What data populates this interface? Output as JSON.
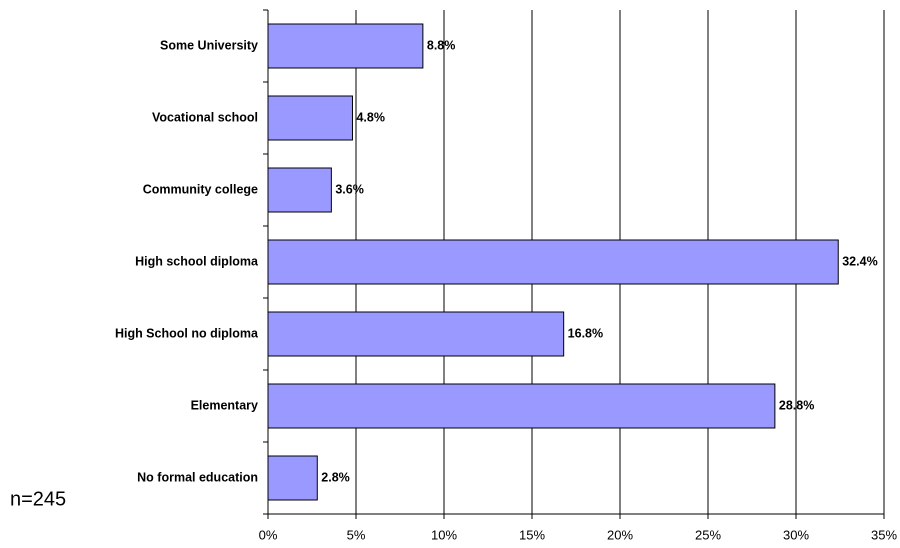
{
  "chart_data": {
    "type": "barh",
    "categories": [
      "Some University",
      "Vocational school",
      "Community college",
      "High school diploma",
      "High School no diploma",
      "Elementary",
      "No formal education"
    ],
    "values": [
      8.8,
      4.8,
      3.6,
      32.4,
      16.8,
      28.8,
      2.8
    ],
    "value_labels": [
      "8.8%",
      "4.8%",
      "3.6%",
      "32.4%",
      "16.8%",
      "28.8%",
      "2.8%"
    ],
    "color": "#9999ff",
    "xlim": [
      0,
      35
    ],
    "xticks": [
      {
        "value": 0,
        "label": "0%"
      },
      {
        "value": 5,
        "label": "5%"
      },
      {
        "value": 10,
        "label": "10%"
      },
      {
        "value": 15,
        "label": "15%"
      },
      {
        "value": 20,
        "label": "20%"
      },
      {
        "value": 25,
        "label": "25%"
      },
      {
        "value": 30,
        "label": "30%"
      },
      {
        "value": 35,
        "label": "35%"
      }
    ],
    "grid": true,
    "annotation": "n=245"
  }
}
